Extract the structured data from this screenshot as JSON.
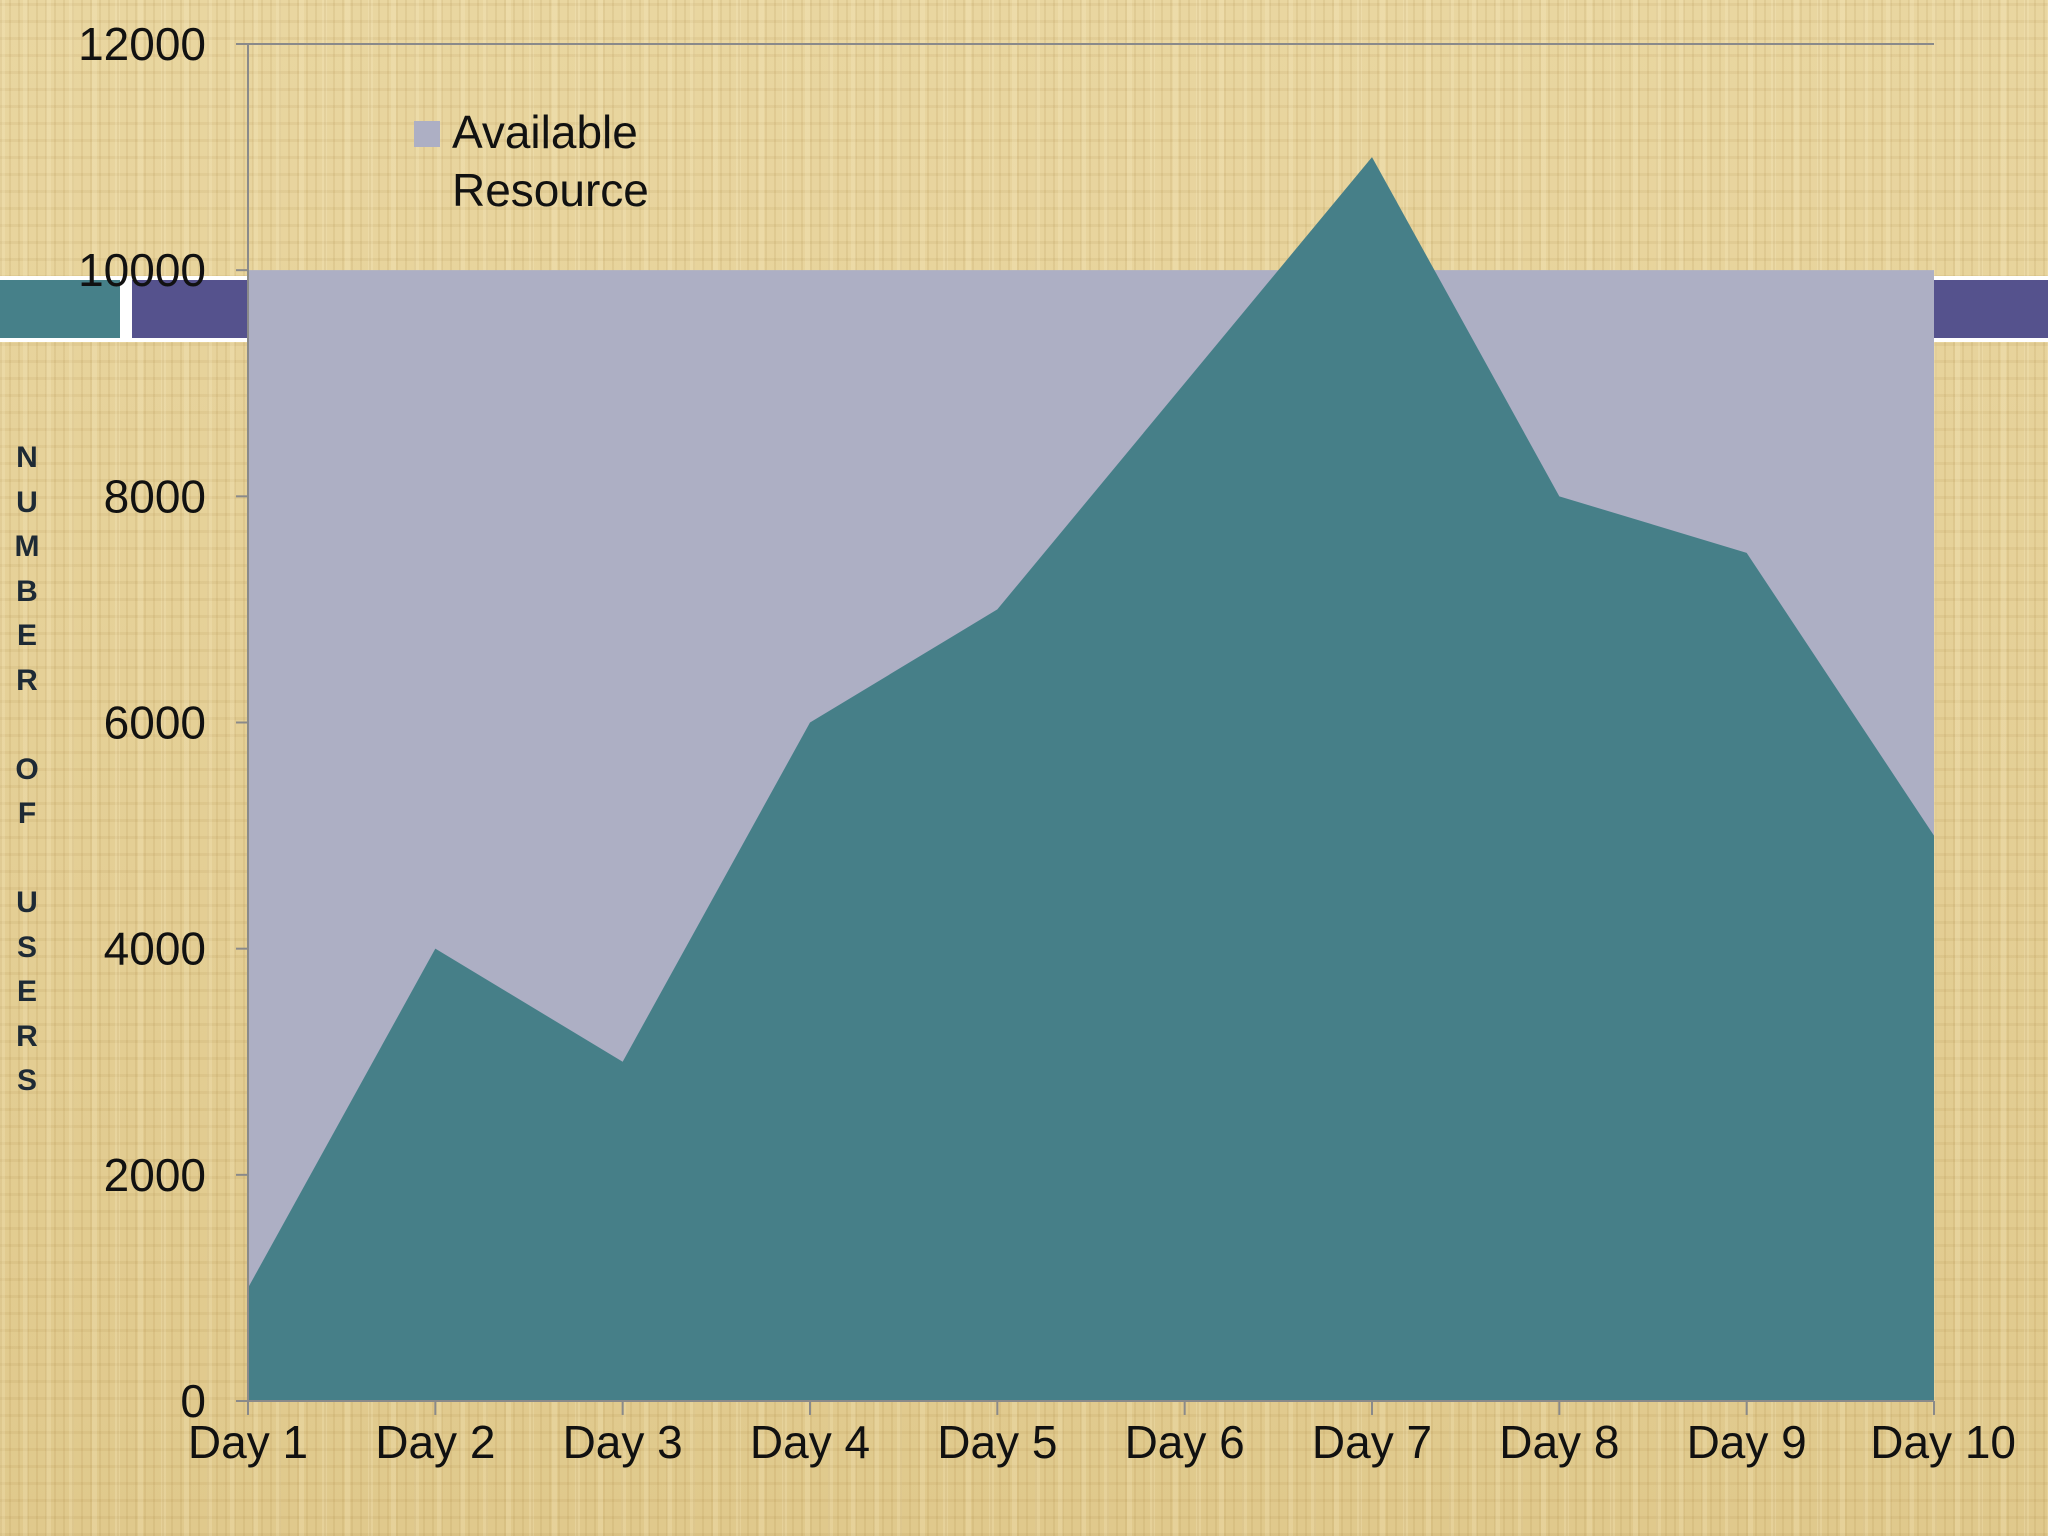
{
  "theme": {
    "band_teal": "#468089",
    "band_purple": "#55528d",
    "band_white": "#ffffff"
  },
  "chart_data": {
    "type": "area",
    "categories": [
      "Day 1",
      "Day 2",
      "Day 3",
      "Day 4",
      "Day 5",
      "Day 6",
      "Day 7",
      "Day 8",
      "Day 9",
      "Day 10"
    ],
    "series": [
      {
        "name": "Available Resource",
        "values": [
          10000,
          10000,
          10000,
          10000,
          10000,
          10000,
          10000,
          10000,
          10000,
          10000
        ],
        "color": "#adafc4",
        "legend": true
      },
      {
        "values": [
          1000,
          4000,
          3000,
          6000,
          7000,
          9000,
          11000,
          8000,
          7500,
          5000
        ],
        "color": "#467f88",
        "legend": false
      }
    ],
    "ylabel": "NUMBER OF USERS",
    "ylim": [
      0,
      12000
    ],
    "yticks": [
      0,
      2000,
      4000,
      6000,
      8000,
      10000,
      12000
    ],
    "grid": false,
    "legend_position": "top-left"
  }
}
